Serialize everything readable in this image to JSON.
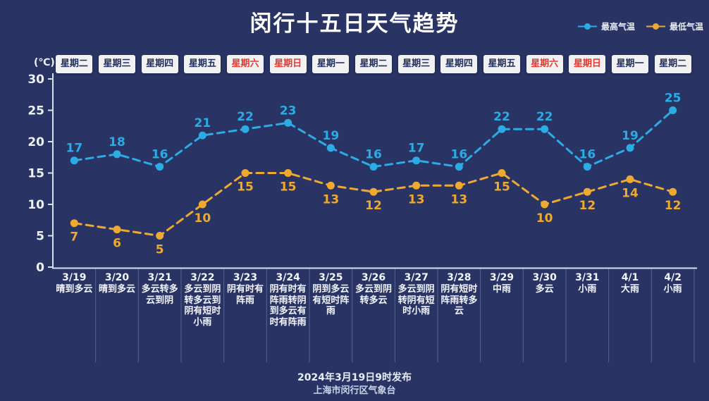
{
  "title": "闵行十五日天气趋势",
  "y_axis": {
    "unit": "(℃)",
    "ticks": [
      0,
      5,
      10,
      15,
      20,
      25,
      30
    ],
    "min": 0,
    "max": 30
  },
  "legend": [
    {
      "label": "最高气温",
      "color": "#2bace4"
    },
    {
      "label": "最低气温",
      "color": "#eda930"
    }
  ],
  "days": [
    {
      "weekday": "星期二",
      "weekend": false,
      "date": "3/19",
      "condition": "晴到多云",
      "high": 17,
      "low": 7
    },
    {
      "weekday": "星期三",
      "weekend": false,
      "date": "3/20",
      "condition": "晴到多云",
      "high": 18,
      "low": 6
    },
    {
      "weekday": "星期四",
      "weekend": false,
      "date": "3/21",
      "condition": "多云转多云到阴",
      "high": 16,
      "low": 5
    },
    {
      "weekday": "星期五",
      "weekend": false,
      "date": "3/22",
      "condition": "多云到阴转多云到阴有短时小雨",
      "high": 21,
      "low": 10
    },
    {
      "weekday": "星期六",
      "weekend": true,
      "date": "3/23",
      "condition": "阴有时有阵雨",
      "high": 22,
      "low": 15
    },
    {
      "weekday": "星期日",
      "weekend": true,
      "date": "3/24",
      "condition": "阴有时有阵雨转阴到多云有时有阵雨",
      "high": 23,
      "low": 15
    },
    {
      "weekday": "星期一",
      "weekend": false,
      "date": "3/25",
      "condition": "阴到多云有短时阵雨",
      "high": 19,
      "low": 13
    },
    {
      "weekday": "星期二",
      "weekend": false,
      "date": "3/26",
      "condition": "多云到阴转多云",
      "high": 16,
      "low": 12
    },
    {
      "weekday": "星期三",
      "weekend": false,
      "date": "3/27",
      "condition": "多云到阴转阴有短时小雨",
      "high": 17,
      "low": 13
    },
    {
      "weekday": "星期四",
      "weekend": false,
      "date": "3/28",
      "condition": "阴有短时阵雨转多云",
      "high": 16,
      "low": 13
    },
    {
      "weekday": "星期五",
      "weekend": false,
      "date": "3/29",
      "condition": "中雨",
      "high": 22,
      "low": 15
    },
    {
      "weekday": "星期六",
      "weekend": true,
      "date": "3/30",
      "condition": "多云",
      "high": 22,
      "low": 10
    },
    {
      "weekday": "星期日",
      "weekend": true,
      "date": "3/31",
      "condition": "小雨",
      "high": 16,
      "low": 12
    },
    {
      "weekday": "星期一",
      "weekend": false,
      "date": "4/1",
      "condition": "大雨",
      "high": 19,
      "low": 14
    },
    {
      "weekday": "星期二",
      "weekend": false,
      "date": "4/2",
      "condition": "小雨",
      "high": 25,
      "low": 12
    }
  ],
  "footer": {
    "line1": "2024年3月19日9时发布",
    "line2": "上海市闵行区气象台"
  },
  "colors": {
    "background": "#293465",
    "high_series": "#2bace4",
    "low_series": "#eda930",
    "weekday_box_bg": "#f1f1f3",
    "weekday_text": "#222f5c",
    "weekend_text": "#e8382d",
    "axis": "#d9dfee",
    "label_text": "#f3f5fb"
  },
  "chart_data": {
    "type": "line",
    "title": "闵行十五日天气趋势",
    "categories": [
      "3/19",
      "3/20",
      "3/21",
      "3/22",
      "3/23",
      "3/24",
      "3/25",
      "3/26",
      "3/27",
      "3/28",
      "3/29",
      "3/30",
      "3/31",
      "4/1",
      "4/2"
    ],
    "series": [
      {
        "name": "最高气温",
        "color": "#2bace4",
        "values": [
          17,
          18,
          16,
          21,
          22,
          23,
          19,
          16,
          17,
          16,
          22,
          22,
          16,
          19,
          25
        ]
      },
      {
        "name": "最低气温",
        "color": "#eda930",
        "values": [
          7,
          6,
          5,
          10,
          15,
          15,
          13,
          12,
          13,
          13,
          15,
          10,
          12,
          14,
          12
        ]
      }
    ],
    "weekdays": [
      "星期二",
      "星期三",
      "星期四",
      "星期五",
      "星期六",
      "星期日",
      "星期一",
      "星期二",
      "星期三",
      "星期四",
      "星期五",
      "星期六",
      "星期日",
      "星期一",
      "星期二"
    ],
    "conditions": [
      "晴到多云",
      "晴到多云",
      "多云转多云到阴",
      "多云到阴转多云到阴有短时小雨",
      "阴有时有阵雨",
      "阴有时有阵雨转阴到多云有时有阵雨",
      "阴到多云有短时阵雨",
      "多云到阴转多云",
      "多云到阴转阴有短时小雨",
      "阴有短时阵雨转多云",
      "中雨",
      "多云",
      "小雨",
      "大雨",
      "小雨"
    ],
    "xlabel": "",
    "ylabel": "(℃)",
    "ylim": [
      0,
      30
    ],
    "yticks": [
      0,
      5,
      10,
      15,
      20,
      25,
      30
    ],
    "grid": false,
    "legend_position": "top-right",
    "line_style": "dashed",
    "data_labels": true
  }
}
